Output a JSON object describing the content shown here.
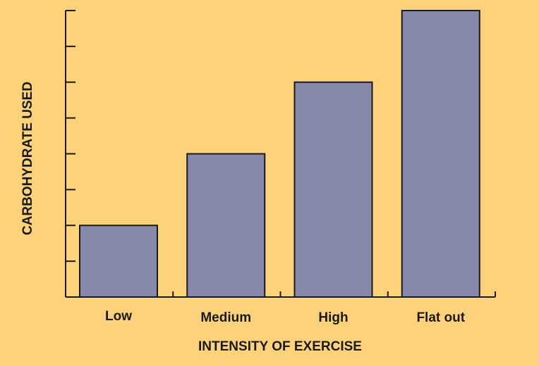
{
  "colors": {
    "background": "#FDD27A",
    "bar_fill": "#8689AA",
    "bar_stroke": "#1a1a1a",
    "axis": "#1a1a1a"
  },
  "chart_data": {
    "type": "bar",
    "title": "",
    "categories": [
      "Low",
      "Medium",
      "High",
      "Flat out"
    ],
    "values": [
      2,
      4,
      6,
      8
    ],
    "xlabel": "INTENSITY OF EXERCISE",
    "ylabel": "CARBOHYDRATE USED",
    "ylim": [
      0,
      8
    ],
    "y_ticks": [
      0,
      1,
      2,
      3,
      4,
      5,
      6,
      7,
      8
    ],
    "y_tick_labels_shown": false,
    "grid": false,
    "legend": "none"
  }
}
